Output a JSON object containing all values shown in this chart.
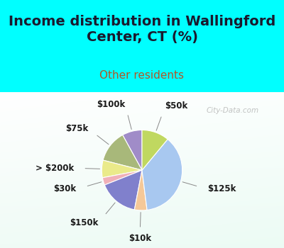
{
  "title": "Income distribution in Wallingford\nCenter, CT (%)",
  "subtitle": "Other residents",
  "slices": [
    {
      "label": "$100k",
      "value": 8,
      "color": "#a08cc8"
    },
    {
      "label": "$75k",
      "value": 13,
      "color": "#a8b87a"
    },
    {
      "label": "> $200k",
      "value": 7,
      "color": "#eaea8a"
    },
    {
      "label": "$30k",
      "value": 3,
      "color": "#f0b0b8"
    },
    {
      "label": "$150k",
      "value": 16,
      "color": "#8080cc"
    },
    {
      "label": "$10k",
      "value": 5,
      "color": "#f5c898"
    },
    {
      "label": "$125k",
      "value": 37,
      "color": "#a8c8f0"
    },
    {
      "label": "$50k",
      "value": 11,
      "color": "#c0d860"
    }
  ],
  "background_top": "#00ffff",
  "background_chart_color1": "#e8f4e8",
  "background_chart_color2": "#d0ece0",
  "title_color": "#1a1a2e",
  "subtitle_color": "#b05828",
  "label_color": "#1a1a1a",
  "watermark": "City-Data.com",
  "startangle": 90,
  "label_fontsize": 8.5,
  "title_fontsize": 14,
  "subtitle_fontsize": 11
}
